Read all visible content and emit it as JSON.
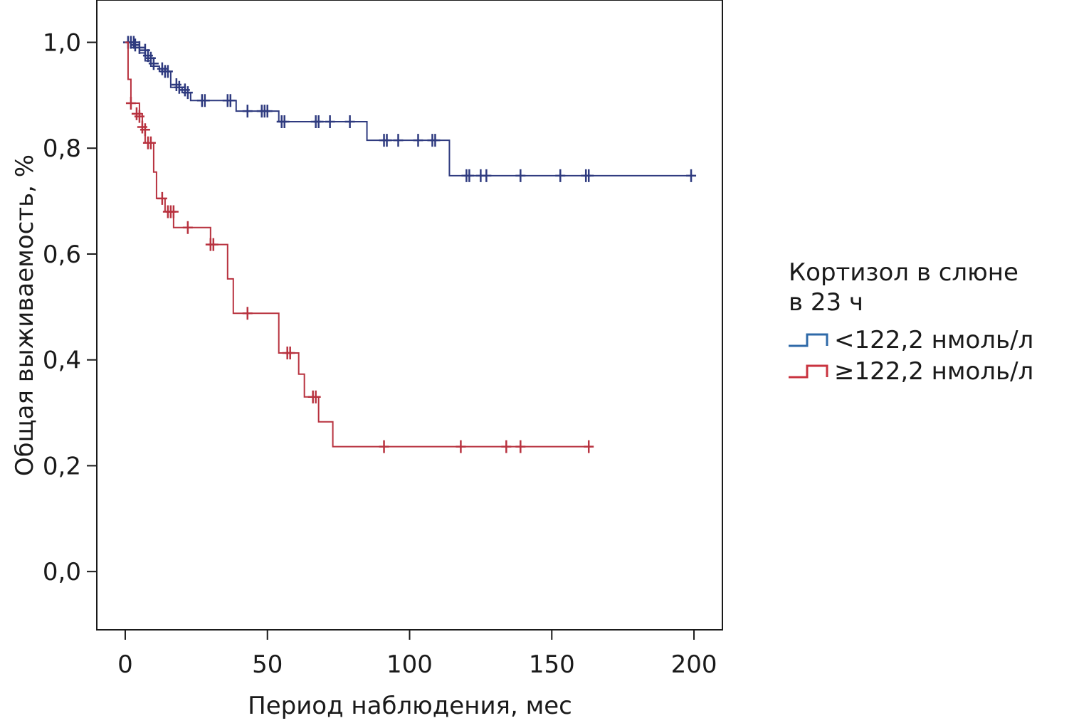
{
  "chart_data": {
    "type": "line",
    "subtype": "kaplan-meier",
    "title": "",
    "xlabel": "Период наблюдения, мес",
    "ylabel": "Общая выживаемость, %",
    "xlim": [
      -10,
      210
    ],
    "ylim": [
      -0.11,
      1.08
    ],
    "xticks": [
      0,
      50,
      100,
      150,
      200
    ],
    "xtick_labels": [
      "0",
      "50",
      "100",
      "150",
      "200"
    ],
    "yticks": [
      0.0,
      0.2,
      0.4,
      0.6,
      0.8,
      1.0
    ],
    "ytick_labels": [
      "0,0",
      "0,2",
      "0,4",
      "0,6",
      "0,8",
      "1,0"
    ],
    "grid": false,
    "legend": {
      "position": "right",
      "title": "Кортизол в слюне\nв 23 ч"
    },
    "series": [
      {
        "name": "<122,2 нмоль/л",
        "color": "#2e3a7f",
        "legend_color": "#2f6aa8",
        "steps": [
          [
            0,
            1.0
          ],
          [
            2,
            0.99
          ],
          [
            5,
            0.98
          ],
          [
            7,
            0.965
          ],
          [
            9,
            0.955
          ],
          [
            12,
            0.945
          ],
          [
            16,
            0.915
          ],
          [
            20,
            0.905
          ],
          [
            23,
            0.89
          ],
          [
            39,
            0.87
          ],
          [
            54,
            0.85
          ],
          [
            85,
            0.815
          ],
          [
            114,
            0.748
          ],
          [
            200,
            0.748
          ]
        ],
        "censored": [
          [
            1,
            1.0
          ],
          [
            2,
            1.0
          ],
          [
            3,
            1.0
          ],
          [
            3.5,
            0.995
          ],
          [
            5,
            0.99
          ],
          [
            7,
            0.985
          ],
          [
            8,
            0.975
          ],
          [
            9,
            0.97
          ],
          [
            10,
            0.96
          ],
          [
            13,
            0.95
          ],
          [
            14,
            0.945
          ],
          [
            15,
            0.945
          ],
          [
            18,
            0.92
          ],
          [
            19,
            0.915
          ],
          [
            21,
            0.91
          ],
          [
            22,
            0.905
          ],
          [
            27,
            0.89
          ],
          [
            28,
            0.89
          ],
          [
            36,
            0.89
          ],
          [
            37,
            0.89
          ],
          [
            43,
            0.87
          ],
          [
            48,
            0.87
          ],
          [
            49,
            0.87
          ],
          [
            50,
            0.87
          ],
          [
            55,
            0.85
          ],
          [
            56,
            0.85
          ],
          [
            67,
            0.85
          ],
          [
            68,
            0.85
          ],
          [
            72,
            0.85
          ],
          [
            79,
            0.85
          ],
          [
            91,
            0.815
          ],
          [
            92,
            0.815
          ],
          [
            96,
            0.815
          ],
          [
            103,
            0.815
          ],
          [
            108,
            0.815
          ],
          [
            109,
            0.815
          ],
          [
            120,
            0.748
          ],
          [
            121,
            0.748
          ],
          [
            125,
            0.748
          ],
          [
            127,
            0.748
          ],
          [
            139,
            0.748
          ],
          [
            153,
            0.748
          ],
          [
            162,
            0.748
          ],
          [
            163,
            0.748
          ],
          [
            199,
            0.748
          ]
        ]
      },
      {
        "name": "≥122,2 нмоль/л",
        "color": "#b8323f",
        "legend_color": "#c9333f",
        "steps": [
          [
            0,
            1.0
          ],
          [
            1,
            0.93
          ],
          [
            2,
            0.885
          ],
          [
            5,
            0.865
          ],
          [
            6,
            0.835
          ],
          [
            7,
            0.81
          ],
          [
            10,
            0.755
          ],
          [
            11,
            0.705
          ],
          [
            14,
            0.68
          ],
          [
            17,
            0.65
          ],
          [
            30,
            0.618
          ],
          [
            36,
            0.553
          ],
          [
            38,
            0.488
          ],
          [
            54,
            0.413
          ],
          [
            61,
            0.373
          ],
          [
            63,
            0.33
          ],
          [
            68,
            0.283
          ],
          [
            73,
            0.236
          ],
          [
            164,
            0.236
          ]
        ],
        "censored": [
          [
            2,
            0.885
          ],
          [
            4,
            0.865
          ],
          [
            5,
            0.86
          ],
          [
            6,
            0.84
          ],
          [
            7,
            0.835
          ],
          [
            8,
            0.81
          ],
          [
            9,
            0.81
          ],
          [
            13,
            0.705
          ],
          [
            15,
            0.68
          ],
          [
            16,
            0.68
          ],
          [
            17,
            0.68
          ],
          [
            22,
            0.65
          ],
          [
            30,
            0.618
          ],
          [
            31,
            0.618
          ],
          [
            43,
            0.488
          ],
          [
            57,
            0.413
          ],
          [
            58,
            0.413
          ],
          [
            66,
            0.33
          ],
          [
            67,
            0.33
          ],
          [
            91,
            0.236
          ],
          [
            118,
            0.236
          ],
          [
            134,
            0.236
          ],
          [
            139,
            0.236
          ],
          [
            163,
            0.236
          ]
        ]
      }
    ]
  }
}
